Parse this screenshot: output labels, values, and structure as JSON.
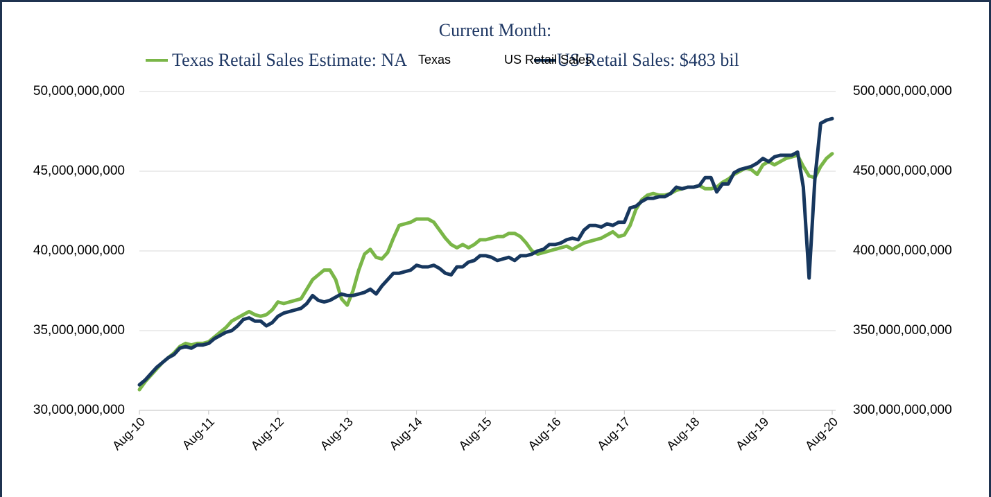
{
  "chart_data": {
    "type": "line",
    "title": "Current Month:",
    "annotations": [
      "Texas Retail Sales Estimate:  NA",
      "US Retail Sales:  $483 bil"
    ],
    "categories": [
      "Aug-10",
      null,
      null,
      null,
      null,
      null,
      null,
      null,
      null,
      null,
      null,
      null,
      "Aug-11",
      null,
      null,
      null,
      null,
      null,
      null,
      null,
      null,
      null,
      null,
      null,
      "Aug-12",
      null,
      null,
      null,
      null,
      null,
      null,
      null,
      null,
      null,
      null,
      null,
      "Aug-13",
      null,
      null,
      null,
      null,
      null,
      null,
      null,
      null,
      null,
      null,
      null,
      "Aug-14",
      null,
      null,
      null,
      null,
      null,
      null,
      null,
      null,
      null,
      null,
      null,
      "Aug-15",
      null,
      null,
      null,
      null,
      null,
      null,
      null,
      null,
      null,
      null,
      null,
      "Aug-16",
      null,
      null,
      null,
      null,
      null,
      null,
      null,
      null,
      null,
      null,
      null,
      "Aug-17",
      null,
      null,
      null,
      null,
      null,
      null,
      null,
      null,
      null,
      null,
      null,
      "Aug-18",
      null,
      null,
      null,
      null,
      null,
      null,
      null,
      null,
      null,
      null,
      null,
      "Aug-19",
      null,
      null,
      null,
      null,
      null,
      null,
      null,
      null,
      null,
      null,
      null,
      "Aug-20"
    ],
    "series": [
      {
        "name": "Texas",
        "color": "#7ab648",
        "axis": "y",
        "values": [
          31300000000.0,
          31800000000.0,
          32200000000.0,
          32600000000.0,
          33000000000.0,
          33300000000.0,
          33600000000.0,
          34000000000.0,
          34200000000.0,
          34100000000.0,
          34200000000.0,
          34200000000.0,
          34300000000.0,
          34600000000.0,
          34900000000.0,
          35200000000.0,
          35600000000.0,
          35800000000.0,
          36000000000.0,
          36200000000.0,
          36000000000.0,
          35900000000.0,
          36000000000.0,
          36300000000.0,
          36800000000.0,
          36700000000.0,
          36800000000.0,
          36900000000.0,
          37000000000.0,
          37600000000.0,
          38200000000.0,
          38500000000.0,
          38800000000.0,
          38800000000.0,
          38200000000.0,
          37000000000.0,
          36600000000.0,
          37500000000.0,
          38800000000.0,
          39800000000.0,
          40100000000.0,
          39600000000.0,
          39500000000.0,
          39900000000.0,
          40800000000.0,
          41600000000.0,
          41700000000.0,
          41800000000.0,
          42000000000.0,
          42000000000.0,
          42000000000.0,
          41800000000.0,
          41300000000.0,
          40800000000.0,
          40400000000.0,
          40200000000.0,
          40400000000.0,
          40200000000.0,
          40400000000.0,
          40700000000.0,
          40700000000.0,
          40800000000.0,
          40900000000.0,
          40900000000.0,
          41100000000.0,
          41100000000.0,
          40900000000.0,
          40500000000.0,
          40000000000.0,
          39800000000.0,
          39900000000.0,
          40000000000.0,
          40100000000.0,
          40200000000.0,
          40300000000.0,
          40100000000.0,
          40300000000.0,
          40500000000.0,
          40600000000.0,
          40700000000.0,
          40800000000.0,
          41000000000.0,
          41200000000.0,
          40900000000.0,
          41000000000.0,
          41600000000.0,
          42600000000.0,
          43200000000.0,
          43500000000.0,
          43600000000.0,
          43500000000.0,
          43500000000.0,
          43600000000.0,
          43800000000.0,
          43900000000.0,
          44000000000.0,
          44000000000.0,
          44100000000.0,
          43900000000.0,
          43900000000.0,
          44000000000.0,
          44300000000.0,
          44500000000.0,
          44800000000.0,
          45000000000.0,
          45200000000.0,
          45100000000.0,
          44800000000.0,
          45400000000.0,
          45600000000.0,
          45400000000.0,
          45600000000.0,
          45800000000.0,
          45900000000.0,
          46000000000.0,
          45300000000.0,
          44700000000.0,
          44600000000.0,
          45300000000.0,
          45800000000.0,
          46100000000.0
        ]
      },
      {
        "name": "US Retail Sales",
        "color": "#17375e",
        "axis": "y2",
        "values": [
          316000000000.0,
          319000000000.0,
          323000000000.0,
          327000000000.0,
          330000000000.0,
          333000000000.0,
          335000000000.0,
          339000000000.0,
          340000000000.0,
          339000000000.0,
          341000000000.0,
          341000000000.0,
          342000000000.0,
          345000000000.0,
          347000000000.0,
          349000000000.0,
          350000000000.0,
          353000000000.0,
          357000000000.0,
          358000000000.0,
          356000000000.0,
          356000000000.0,
          353000000000.0,
          355000000000.0,
          359000000000.0,
          361000000000.0,
          362000000000.0,
          363000000000.0,
          364000000000.0,
          367000000000.0,
          372000000000.0,
          369000000000.0,
          368000000000.0,
          369000000000.0,
          371000000000.0,
          373000000000.0,
          372000000000.0,
          372000000000.0,
          373000000000.0,
          374000000000.0,
          376000000000.0,
          373000000000.0,
          378000000000.0,
          382000000000.0,
          386000000000.0,
          386000000000.0,
          387000000000.0,
          388000000000.0,
          391000000000.0,
          390000000000.0,
          390000000000.0,
          391000000000.0,
          389000000000.0,
          386000000000.0,
          385000000000.0,
          390000000000.0,
          390000000000.0,
          393000000000.0,
          394000000000.0,
          397000000000.0,
          397000000000.0,
          396000000000.0,
          394000000000.0,
          395000000000.0,
          396000000000.0,
          394000000000.0,
          397000000000.0,
          397000000000.0,
          398000000000.0,
          400000000000.0,
          401000000000.0,
          404000000000.0,
          404000000000.0,
          405000000000.0,
          407000000000.0,
          408000000000.0,
          407000000000.0,
          413000000000.0,
          416000000000.0,
          416000000000.0,
          415000000000.0,
          417000000000.0,
          416000000000.0,
          418000000000.0,
          418000000000.0,
          427000000000.0,
          428000000000.0,
          431000000000.0,
          433000000000.0,
          433000000000.0,
          434000000000.0,
          434000000000.0,
          436000000000.0,
          440000000000.0,
          439000000000.0,
          440000000000.0,
          440000000000.0,
          441000000000.0,
          446000000000.0,
          446000000000.0,
          437000000000.0,
          442000000000.0,
          442000000000.0,
          449000000000.0,
          451000000000.0,
          452000000000.0,
          453000000000.0,
          455000000000.0,
          458000000000.0,
          456000000000.0,
          459000000000.0,
          460000000000.0,
          460000000000.0,
          460000000000.0,
          462000000000.0,
          440000000000.0,
          383000000000.0,
          445000000000.0,
          480000000000.0,
          482000000000.0,
          483000000000.0
        ]
      }
    ],
    "ylim": [
      30000000000,
      50000000000
    ],
    "yticks": [
      {
        "value": 30000000000,
        "label": "30,000,000,000"
      },
      {
        "value": 35000000000,
        "label": "35,000,000,000"
      },
      {
        "value": 40000000000,
        "label": "40,000,000,000"
      },
      {
        "value": 45000000000,
        "label": "45,000,000,000"
      },
      {
        "value": 50000000000,
        "label": "50,000,000,000"
      }
    ],
    "y2lim": [
      300000000000,
      500000000000
    ],
    "y2ticks": [
      {
        "value": 300000000000,
        "label": "300,000,000,000"
      },
      {
        "value": 350000000000,
        "label": "350,000,000,000"
      },
      {
        "value": 400000000000,
        "label": "400,000,000,000"
      },
      {
        "value": 450000000000,
        "label": "450,000,000,000"
      },
      {
        "value": 500000000000,
        "label": "500,000,000,000"
      }
    ],
    "grid": true
  }
}
